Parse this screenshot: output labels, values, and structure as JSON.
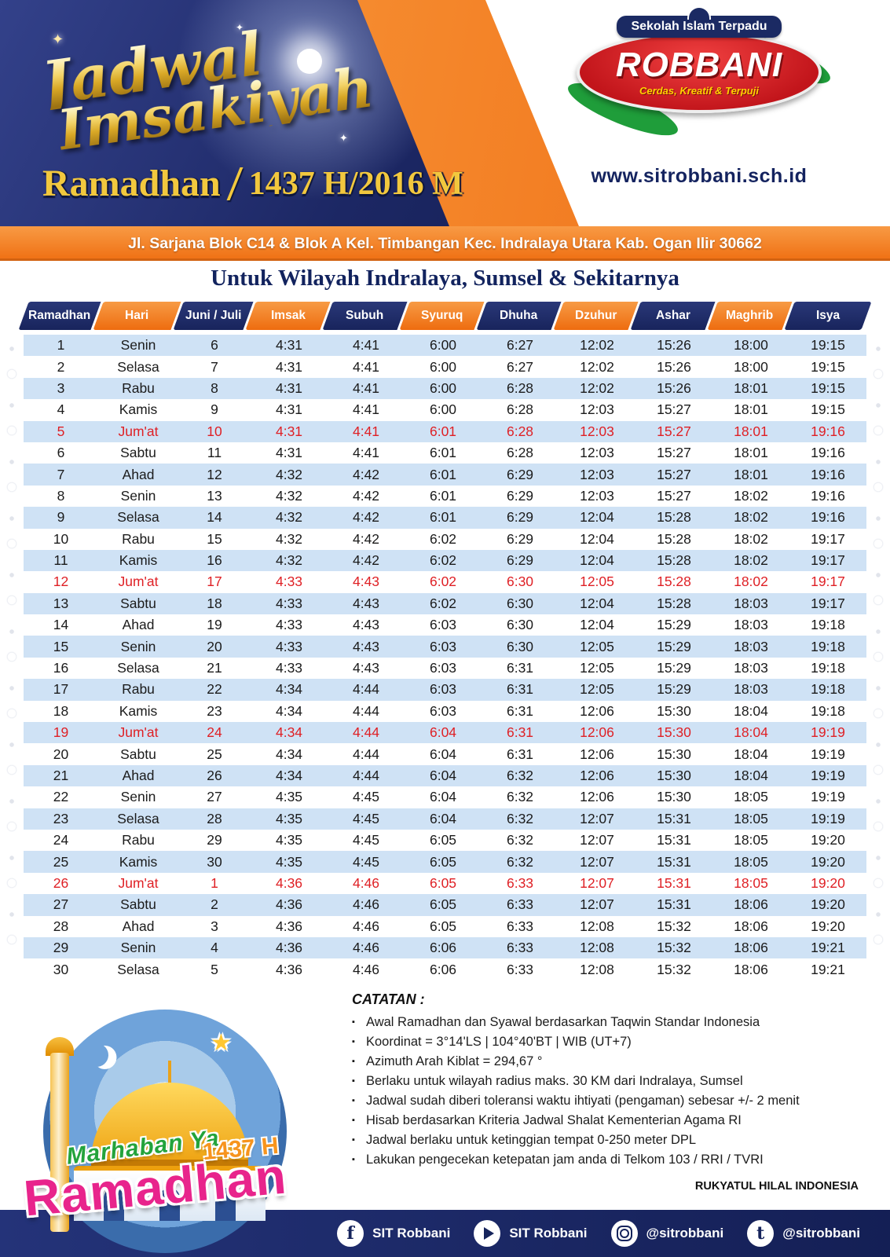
{
  "header": {
    "title_line1": "Jadwal",
    "title_line2": "Imsakiyah",
    "subtitle_ramadhan": "Ramadhan",
    "subtitle_year": "1437 H/2016 M",
    "logo": {
      "banner": "Sekolah Islam Terpadu",
      "name": "ROBBANI",
      "tagline": "Cerdas, Kreatif & Terpuji"
    },
    "website": "www.sitrobbani.sch.id",
    "address": "Jl. Sarjana Blok C14 & Blok A Kel. Timbangan Kec. Indralaya Utara Kab. Ogan Ilir 30662"
  },
  "region_title": "Untuk Wilayah Indralaya, Sumsel & Sekitarnya",
  "table": {
    "columns": [
      "Ramadhan",
      "Hari",
      "Juni / Juli",
      "Imsak",
      "Subuh",
      "Syuruq",
      "Dhuha",
      "Dzuhur",
      "Ashar",
      "Maghrib",
      "Isya"
    ],
    "friday_rows": [
      "5",
      "12",
      "19",
      "26"
    ],
    "rows": [
      [
        "1",
        "Senin",
        "6",
        "4:31",
        "4:41",
        "6:00",
        "6:27",
        "12:02",
        "15:26",
        "18:00",
        "19:15"
      ],
      [
        "2",
        "Selasa",
        "7",
        "4:31",
        "4:41",
        "6:00",
        "6:27",
        "12:02",
        "15:26",
        "18:00",
        "19:15"
      ],
      [
        "3",
        "Rabu",
        "8",
        "4:31",
        "4:41",
        "6:00",
        "6:28",
        "12:02",
        "15:26",
        "18:01",
        "19:15"
      ],
      [
        "4",
        "Kamis",
        "9",
        "4:31",
        "4:41",
        "6:00",
        "6:28",
        "12:03",
        "15:27",
        "18:01",
        "19:15"
      ],
      [
        "5",
        "Jum'at",
        "10",
        "4:31",
        "4:41",
        "6:01",
        "6:28",
        "12:03",
        "15:27",
        "18:01",
        "19:16"
      ],
      [
        "6",
        "Sabtu",
        "11",
        "4:31",
        "4:41",
        "6:01",
        "6:28",
        "12:03",
        "15:27",
        "18:01",
        "19:16"
      ],
      [
        "7",
        "Ahad",
        "12",
        "4:32",
        "4:42",
        "6:01",
        "6:29",
        "12:03",
        "15:27",
        "18:01",
        "19:16"
      ],
      [
        "8",
        "Senin",
        "13",
        "4:32",
        "4:42",
        "6:01",
        "6:29",
        "12:03",
        "15:27",
        "18:02",
        "19:16"
      ],
      [
        "9",
        "Selasa",
        "14",
        "4:32",
        "4:42",
        "6:01",
        "6:29",
        "12:04",
        "15:28",
        "18:02",
        "19:16"
      ],
      [
        "10",
        "Rabu",
        "15",
        "4:32",
        "4:42",
        "6:02",
        "6:29",
        "12:04",
        "15:28",
        "18:02",
        "19:17"
      ],
      [
        "11",
        "Kamis",
        "16",
        "4:32",
        "4:42",
        "6:02",
        "6:29",
        "12:04",
        "15:28",
        "18:02",
        "19:17"
      ],
      [
        "12",
        "Jum'at",
        "17",
        "4:33",
        "4:43",
        "6:02",
        "6:30",
        "12:05",
        "15:28",
        "18:02",
        "19:17"
      ],
      [
        "13",
        "Sabtu",
        "18",
        "4:33",
        "4:43",
        "6:02",
        "6:30",
        "12:04",
        "15:28",
        "18:03",
        "19:17"
      ],
      [
        "14",
        "Ahad",
        "19",
        "4:33",
        "4:43",
        "6:03",
        "6:30",
        "12:04",
        "15:29",
        "18:03",
        "19:18"
      ],
      [
        "15",
        "Senin",
        "20",
        "4:33",
        "4:43",
        "6:03",
        "6:30",
        "12:05",
        "15:29",
        "18:03",
        "19:18"
      ],
      [
        "16",
        "Selasa",
        "21",
        "4:33",
        "4:43",
        "6:03",
        "6:31",
        "12:05",
        "15:29",
        "18:03",
        "19:18"
      ],
      [
        "17",
        "Rabu",
        "22",
        "4:34",
        "4:44",
        "6:03",
        "6:31",
        "12:05",
        "15:29",
        "18:03",
        "19:18"
      ],
      [
        "18",
        "Kamis",
        "23",
        "4:34",
        "4:44",
        "6:03",
        "6:31",
        "12:06",
        "15:30",
        "18:04",
        "19:18"
      ],
      [
        "19",
        "Jum'at",
        "24",
        "4:34",
        "4:44",
        "6:04",
        "6:31",
        "12:06",
        "15:30",
        "18:04",
        "19:19"
      ],
      [
        "20",
        "Sabtu",
        "25",
        "4:34",
        "4:44",
        "6:04",
        "6:31",
        "12:06",
        "15:30",
        "18:04",
        "19:19"
      ],
      [
        "21",
        "Ahad",
        "26",
        "4:34",
        "4:44",
        "6:04",
        "6:32",
        "12:06",
        "15:30",
        "18:04",
        "19:19"
      ],
      [
        "22",
        "Senin",
        "27",
        "4:35",
        "4:45",
        "6:04",
        "6:32",
        "12:06",
        "15:30",
        "18:05",
        "19:19"
      ],
      [
        "23",
        "Selasa",
        "28",
        "4:35",
        "4:45",
        "6:04",
        "6:32",
        "12:07",
        "15:31",
        "18:05",
        "19:19"
      ],
      [
        "24",
        "Rabu",
        "29",
        "4:35",
        "4:45",
        "6:05",
        "6:32",
        "12:07",
        "15:31",
        "18:05",
        "19:20"
      ],
      [
        "25",
        "Kamis",
        "30",
        "4:35",
        "4:45",
        "6:05",
        "6:32",
        "12:07",
        "15:31",
        "18:05",
        "19:20"
      ],
      [
        "26",
        "Jum'at",
        "1",
        "4:36",
        "4:46",
        "6:05",
        "6:33",
        "12:07",
        "15:31",
        "18:05",
        "19:20"
      ],
      [
        "27",
        "Sabtu",
        "2",
        "4:36",
        "4:46",
        "6:05",
        "6:33",
        "12:07",
        "15:31",
        "18:06",
        "19:20"
      ],
      [
        "28",
        "Ahad",
        "3",
        "4:36",
        "4:46",
        "6:05",
        "6:33",
        "12:08",
        "15:32",
        "18:06",
        "19:20"
      ],
      [
        "29",
        "Senin",
        "4",
        "4:36",
        "4:46",
        "6:06",
        "6:33",
        "12:08",
        "15:32",
        "18:06",
        "19:21"
      ],
      [
        "30",
        "Selasa",
        "5",
        "4:36",
        "4:46",
        "6:06",
        "6:33",
        "12:08",
        "15:32",
        "18:06",
        "19:21"
      ]
    ]
  },
  "notes": {
    "heading": "CATATAN :",
    "items": [
      "Awal Ramadhan dan Syawal berdasarkan Taqwin Standar Indonesia",
      "Koordinat = 3°14'LS | 104°40'BT | WIB (UT+7)",
      "Azimuth Arah Kiblat = 294,67 °",
      "Berlaku untuk wilayah radius maks. 30 KM dari Indralaya, Sumsel",
      "Jadwal sudah diberi toleransi waktu ihtiyati (pengaman) sebesar +/- 2 menit",
      "Hisab berdasarkan Kriteria Jadwal Shalat Kementerian Agama RI",
      "Jadwal berlaku untuk ketinggian tempat 0-250 meter DPL",
      "Lakukan pengecekan ketepatan jam anda di Telkom 103 / RRI / TVRI"
    ]
  },
  "credit": "RUKYATUL HILAL INDONESIA",
  "footer_art": {
    "marhaban": "Marhaban Ya",
    "ramadhan": "Ramadhan",
    "year": "1437 H"
  },
  "social": [
    {
      "icon": "facebook-icon",
      "label": "SIT Robbani"
    },
    {
      "icon": "youtube-icon",
      "label": "SIT Robbani"
    },
    {
      "icon": "instagram-icon",
      "label": "@sitrobbani"
    },
    {
      "icon": "twitter-icon",
      "label": "@sitrobbani"
    }
  ],
  "colors": {
    "navy": "#1b2a63",
    "orange": "#f47c20",
    "gold": "#e9c23c",
    "row_blue": "#cfe2f5",
    "friday_red": "#df2025"
  }
}
